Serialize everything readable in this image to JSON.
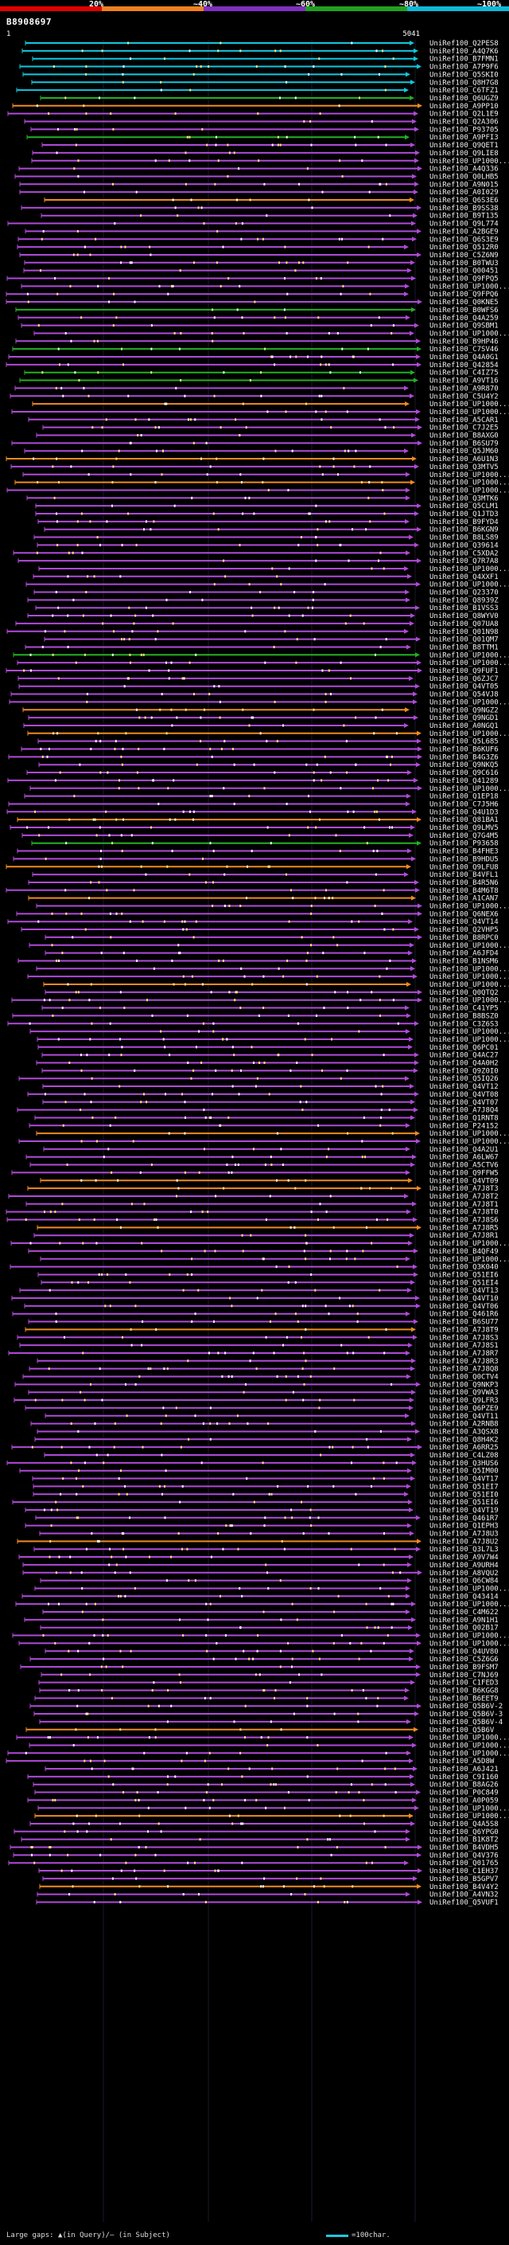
{
  "scale": {
    "ticks": [
      "20%",
      "~40%",
      "~60%",
      "~80%",
      "~100%"
    ],
    "segments": [
      {
        "color": "#e00000"
      },
      {
        "color": "#f08020"
      },
      {
        "color": "#8030c0"
      },
      {
        "color": "#20a020"
      },
      {
        "color": "#10b8d8"
      }
    ]
  },
  "query": {
    "id": "B8908697",
    "start": "1",
    "end": "5041"
  },
  "footer": {
    "legend": "Large gaps: ▲(in Query)/– (in Subject)",
    "length_legend": "=100char."
  },
  "colors": {
    "cyan": "#10c8e0",
    "orange": "#f08a20",
    "green": "#22b022",
    "purple": "#b04ad8",
    "pink": "#f060f0",
    "query": "#ffffff"
  },
  "hits": [
    {
      "label": "UniRef100_Q2PES8",
      "color": "cyan"
    },
    {
      "label": "UniRef100_A4Q7K6",
      "color": "cyan"
    },
    {
      "label": "UniRef100_B7FMN1",
      "color": "cyan"
    },
    {
      "label": "UniRef100_A7P9F6",
      "color": "cyan"
    },
    {
      "label": "UniRef100_Q5SKI0",
      "color": "cyan"
    },
    {
      "label": "UniRef100_Q8H7G8",
      "color": "cyan"
    },
    {
      "label": "UniRef100_C6TFZ1",
      "color": "cyan"
    },
    {
      "label": "UniRef100_Q6UGZ9",
      "color": "green"
    },
    {
      "label": "UniRef100_A9PP10",
      "color": "orange"
    },
    {
      "label": "UniRef100_Q2L1E9",
      "color": "purple"
    },
    {
      "label": "UniRef100_Q2A306",
      "color": "purple"
    },
    {
      "label": "UniRef100_P93705",
      "color": "purple"
    },
    {
      "label": "UniRef100_A9PFI3",
      "color": "green"
    },
    {
      "label": "UniRef100_Q9QET1",
      "color": "purple"
    },
    {
      "label": "UniRef100_Q9LIE8",
      "color": "purple"
    },
    {
      "label": "UniRef100_UP1000...",
      "color": "purple"
    },
    {
      "label": "UniRef100_A4Q336",
      "color": "purple"
    },
    {
      "label": "UniRef100_Q0LHB5",
      "color": "purple"
    },
    {
      "label": "UniRef100_A9N015",
      "color": "purple"
    },
    {
      "label": "UniRef100_A0I029",
      "color": "purple"
    },
    {
      "label": "UniRef100_Q6S3E6",
      "color": "orange"
    },
    {
      "label": "UniRef100_B9SS38",
      "color": "purple"
    },
    {
      "label": "UniRef100_B9T135",
      "color": "purple"
    },
    {
      "label": "UniRef100_Q9L774",
      "color": "purple"
    },
    {
      "label": "UniRef100_A2BGE9",
      "color": "purple"
    },
    {
      "label": "UniRef100_Q6S3E9",
      "color": "purple"
    },
    {
      "label": "UniRef100_Q512R0",
      "color": "purple"
    },
    {
      "label": "UniRef100_C5Z6N9",
      "color": "purple"
    },
    {
      "label": "UniRef100_B0TWU3",
      "color": "purple"
    },
    {
      "label": "UniRef100_Q00451",
      "color": "purple"
    },
    {
      "label": "UniRef100_Q9FPQ5",
      "color": "purple"
    },
    {
      "label": "UniRef100_UP1000...",
      "color": "purple"
    },
    {
      "label": "UniRef100_Q9FPQ6",
      "color": "purple"
    },
    {
      "label": "UniRef100_Q0KNE5",
      "color": "purple"
    },
    {
      "label": "UniRef100_B0WFS6",
      "color": "green"
    },
    {
      "label": "UniRef100_Q4A259",
      "color": "purple"
    },
    {
      "label": "UniRef100_Q9SBM1",
      "color": "purple"
    },
    {
      "label": "UniRef100_UP1000...",
      "color": "purple"
    },
    {
      "label": "UniRef100_B9HP46",
      "color": "purple"
    },
    {
      "label": "UniRef100_C7SV46",
      "color": "green"
    },
    {
      "label": "UniRef100_Q4A0G1",
      "color": "purple"
    },
    {
      "label": "UniRef100_Q42854",
      "color": "purple"
    },
    {
      "label": "UniRef100_C4IZ75",
      "color": "green"
    },
    {
      "label": "UniRef100_A9VT16",
      "color": "green"
    },
    {
      "label": "UniRef100_A9R870",
      "color": "purple"
    },
    {
      "label": "UniRef100_C5U4Y2",
      "color": "purple"
    },
    {
      "label": "UniRef100_UP1000...",
      "color": "orange"
    },
    {
      "label": "UniRef100_UP1000...",
      "color": "purple"
    },
    {
      "label": "UniRef100_A5CAR1",
      "color": "purple"
    },
    {
      "label": "UniRef100_C7J2E5",
      "color": "purple"
    },
    {
      "label": "UniRef100_B8AXG0",
      "color": "purple"
    },
    {
      "label": "UniRef100_B6SU79",
      "color": "purple"
    },
    {
      "label": "UniRef100_Q5JM60",
      "color": "purple"
    },
    {
      "label": "UniRef100_A6U1N3",
      "color": "orange"
    },
    {
      "label": "UniRef100_Q3MTV5",
      "color": "purple"
    },
    {
      "label": "UniRef100_UP1000...",
      "color": "purple"
    },
    {
      "label": "UniRef100_UP1000...",
      "color": "orange"
    },
    {
      "label": "UniRef100_UP1000...",
      "color": "purple"
    },
    {
      "label": "UniRef100_Q3MTK6",
      "color": "purple"
    },
    {
      "label": "UniRef100_Q5CLM1",
      "color": "purple"
    },
    {
      "label": "UniRef100_Q1JTD3",
      "color": "purple"
    },
    {
      "label": "UniRef100_B9FYD4",
      "color": "purple"
    },
    {
      "label": "UniRef100_B6KGN9",
      "color": "purple"
    },
    {
      "label": "UniRef100_B8LS89",
      "color": "purple"
    },
    {
      "label": "UniRef100_Q39614",
      "color": "purple"
    },
    {
      "label": "UniRef100_C5XDA2",
      "color": "purple"
    },
    {
      "label": "UniRef100_Q7R7A8",
      "color": "purple"
    },
    {
      "label": "UniRef100_UP1000...",
      "color": "purple"
    },
    {
      "label": "UniRef100_Q4XXF1",
      "color": "purple"
    },
    {
      "label": "UniRef100_UP1000...",
      "color": "purple"
    },
    {
      "label": "UniRef100_Q23370",
      "color": "purple"
    },
    {
      "label": "UniRef100_Q8939Z",
      "color": "purple"
    },
    {
      "label": "UniRef100_B1VSS3",
      "color": "purple"
    },
    {
      "label": "UniRef100_Q8WYV0",
      "color": "purple"
    },
    {
      "label": "UniRef100_Q07UA8",
      "color": "purple"
    },
    {
      "label": "UniRef100_Q01N98",
      "color": "purple"
    },
    {
      "label": "UniRef100_Q01QM7",
      "color": "purple"
    },
    {
      "label": "UniRef100_B8TTM1",
      "color": "purple"
    },
    {
      "label": "UniRef100_UP1000...",
      "color": "green"
    },
    {
      "label": "UniRef100_UP1000...",
      "color": "purple"
    },
    {
      "label": "UniRef100_Q9FUF1",
      "color": "purple"
    },
    {
      "label": "UniRef100_Q6ZJC7",
      "color": "purple"
    },
    {
      "label": "UniRef100_Q4VT05",
      "color": "purple"
    },
    {
      "label": "UniRef100_Q54VJ8",
      "color": "purple"
    },
    {
      "label": "UniRef100_UP1000...",
      "color": "purple"
    },
    {
      "label": "UniRef100_Q9NGZ2",
      "color": "orange"
    },
    {
      "label": "UniRef100_Q9NGD1",
      "color": "purple"
    },
    {
      "label": "UniRef100_A0NGQ1",
      "color": "purple"
    },
    {
      "label": "UniRef100_UP1000...",
      "color": "orange"
    },
    {
      "label": "UniRef100_Q5L685",
      "color": "purple"
    },
    {
      "label": "UniRef100_B6KUF6",
      "color": "purple"
    },
    {
      "label": "UniRef100_B4G3Z6",
      "color": "purple"
    },
    {
      "label": "UniRef100_Q9NKQ5",
      "color": "purple"
    },
    {
      "label": "UniRef100_Q9C616",
      "color": "purple"
    },
    {
      "label": "UniRef100_Q41289",
      "color": "purple"
    },
    {
      "label": "UniRef100_UP1000...",
      "color": "purple"
    },
    {
      "label": "UniRef100_Q1EP18",
      "color": "purple"
    },
    {
      "label": "UniRef100_C7J5H6",
      "color": "purple"
    },
    {
      "label": "UniRef100_Q4U1D3",
      "color": "purple"
    },
    {
      "label": "UniRef100_Q81BA1",
      "color": "orange"
    },
    {
      "label": "UniRef100_Q9LMV5",
      "color": "purple"
    },
    {
      "label": "UniRef100_Q7G4M5",
      "color": "purple"
    },
    {
      "label": "UniRef100_P93658",
      "color": "green"
    },
    {
      "label": "UniRef100_B4FHE3",
      "color": "purple"
    },
    {
      "label": "UniRef100_B9HDU5",
      "color": "purple"
    },
    {
      "label": "UniRef100_Q9LFU8",
      "color": "orange"
    },
    {
      "label": "UniRef100_B4VFL1",
      "color": "purple"
    },
    {
      "label": "UniRef100_B4R5N6",
      "color": "purple"
    },
    {
      "label": "UniRef100_B4M6T8",
      "color": "purple"
    },
    {
      "label": "UniRef100_A1CAN7",
      "color": "orange"
    },
    {
      "label": "UniRef100_UP1000...",
      "color": "purple"
    },
    {
      "label": "UniRef100_Q6NEX6",
      "color": "purple"
    },
    {
      "label": "UniRef100_Q4VT14",
      "color": "purple"
    },
    {
      "label": "UniRef100_Q2VHP5",
      "color": "purple"
    },
    {
      "label": "UniRef100_B8RPC0",
      "color": "purple"
    },
    {
      "label": "UniRef100_UP1000...",
      "color": "purple"
    },
    {
      "label": "UniRef100_A6JFD4",
      "color": "purple"
    },
    {
      "label": "UniRef100_B1NSM6",
      "color": "purple"
    },
    {
      "label": "UniRef100_UP1000...",
      "color": "purple"
    },
    {
      "label": "UniRef100_UP1000...",
      "color": "purple"
    },
    {
      "label": "UniRef100_UP1000...",
      "color": "orange"
    },
    {
      "label": "UniRef100_Q0QTQ2",
      "color": "purple"
    },
    {
      "label": "UniRef100_UP1000...",
      "color": "purple"
    },
    {
      "label": "UniRef100_C41YP5",
      "color": "purple"
    },
    {
      "label": "UniRef100_B8BSZ0",
      "color": "purple"
    },
    {
      "label": "UniRef100_C3Z6S3",
      "color": "purple"
    },
    {
      "label": "UniRef100_UP1000...",
      "color": "purple"
    },
    {
      "label": "UniRef100_UP1000...",
      "color": "purple"
    },
    {
      "label": "UniRef100_Q6PC01",
      "color": "purple"
    },
    {
      "label": "UniRef100_Q4AC27",
      "color": "purple"
    },
    {
      "label": "UniRef100_Q4A0H2",
      "color": "purple"
    },
    {
      "label": "UniRef100_Q9Z0I0",
      "color": "purple"
    },
    {
      "label": "UniRef100_Q5IQ26",
      "color": "purple"
    },
    {
      "label": "UniRef100_Q4VT12",
      "color": "purple"
    },
    {
      "label": "UniRef100_Q4VT08",
      "color": "purple"
    },
    {
      "label": "UniRef100_Q4VT07",
      "color": "purple"
    },
    {
      "label": "UniRef100_A7J8Q4",
      "color": "purple"
    },
    {
      "label": "UniRef100_Q1RNT8",
      "color": "purple"
    },
    {
      "label": "UniRef100_P24152",
      "color": "purple"
    },
    {
      "label": "UniRef100_UP1000...",
      "color": "orange"
    },
    {
      "label": "UniRef100_UP1000...",
      "color": "purple"
    },
    {
      "label": "UniRef100_Q4A2U1",
      "color": "purple"
    },
    {
      "label": "UniRef100_A6LW67",
      "color": "purple"
    },
    {
      "label": "UniRef100_A5CTV6",
      "color": "purple"
    },
    {
      "label": "UniRef100_Q9FFW5",
      "color": "purple"
    },
    {
      "label": "UniRef100_Q4VT09",
      "color": "orange"
    },
    {
      "label": "UniRef100_A7J8T3",
      "color": "orange"
    },
    {
      "label": "UniRef100_A7J8T2",
      "color": "purple"
    },
    {
      "label": "UniRef100_A7J8T1",
      "color": "purple"
    },
    {
      "label": "UniRef100_A7J8T0",
      "color": "purple"
    },
    {
      "label": "UniRef100_A7J8S6",
      "color": "purple"
    },
    {
      "label": "UniRef100_A7J8R5",
      "color": "orange"
    },
    {
      "label": "UniRef100_A7J8R1",
      "color": "purple"
    },
    {
      "label": "UniRef100_UP1000...",
      "color": "purple"
    },
    {
      "label": "UniRef100_B4QF49",
      "color": "purple"
    },
    {
      "label": "UniRef100_UP1000...",
      "color": "purple"
    },
    {
      "label": "UniRef100_Q3K040",
      "color": "purple"
    },
    {
      "label": "UniRef100_Q51EI6",
      "color": "purple"
    },
    {
      "label": "UniRef100_Q51EI4",
      "color": "purple"
    },
    {
      "label": "UniRef100_Q4VT13",
      "color": "purple"
    },
    {
      "label": "UniRef100_Q4VT10",
      "color": "purple"
    },
    {
      "label": "UniRef100_Q4VT06",
      "color": "purple"
    },
    {
      "label": "UniRef100_Q461R6",
      "color": "purple"
    },
    {
      "label": "UniRef100_B6SU77",
      "color": "purple"
    },
    {
      "label": "UniRef100_A7J8T9",
      "color": "orange"
    },
    {
      "label": "UniRef100_A7J8S3",
      "color": "purple"
    },
    {
      "label": "UniRef100_A7J8S1",
      "color": "purple"
    },
    {
      "label": "UniRef100_A7J8R7",
      "color": "purple"
    },
    {
      "label": "UniRef100_A7J8R3",
      "color": "purple"
    },
    {
      "label": "UniRef100_A7J8Q8",
      "color": "purple"
    },
    {
      "label": "UniRef100_Q0CTV4",
      "color": "purple"
    },
    {
      "label": "UniRef100_Q9NKP3",
      "color": "purple"
    },
    {
      "label": "UniRef100_Q9VWA3",
      "color": "purple"
    },
    {
      "label": "UniRef100_Q9LFR3",
      "color": "purple"
    },
    {
      "label": "UniRef100_Q6PZE9",
      "color": "purple"
    },
    {
      "label": "UniRef100_Q4VT11",
      "color": "purple"
    },
    {
      "label": "UniRef100_A2RNB8",
      "color": "purple"
    },
    {
      "label": "UniRef100_A3QSX8",
      "color": "purple"
    },
    {
      "label": "UniRef100_Q8H4K2",
      "color": "purple"
    },
    {
      "label": "UniRef100_A6RR25",
      "color": "purple"
    },
    {
      "label": "UniRef100_C4LZ08",
      "color": "purple"
    },
    {
      "label": "UniRef100_Q3HUS6",
      "color": "purple"
    },
    {
      "label": "UniRef100_Q5IM00",
      "color": "purple"
    },
    {
      "label": "UniRef100_Q4VT17",
      "color": "purple"
    },
    {
      "label": "UniRef100_Q51EI7",
      "color": "purple"
    },
    {
      "label": "UniRef100_Q51EI0",
      "color": "purple"
    },
    {
      "label": "UniRef100_Q51EI6",
      "color": "purple"
    },
    {
      "label": "UniRef100_Q4VT19",
      "color": "purple"
    },
    {
      "label": "UniRef100_Q461R7",
      "color": "purple"
    },
    {
      "label": "UniRef100_Q1EPH3",
      "color": "purple"
    },
    {
      "label": "UniRef100_A7J8U3",
      "color": "purple"
    },
    {
      "label": "UniRef100_A7J8U2",
      "color": "orange"
    },
    {
      "label": "UniRef100_Q3L7L3",
      "color": "purple"
    },
    {
      "label": "UniRef100_A9V7W4",
      "color": "purple"
    },
    {
      "label": "UniRef100_A9URH4",
      "color": "purple"
    },
    {
      "label": "UniRef100_A8VQU2",
      "color": "purple"
    },
    {
      "label": "UniRef100_Q6CW84",
      "color": "purple"
    },
    {
      "label": "UniRef100_UP1000...",
      "color": "purple"
    },
    {
      "label": "UniRef100_Q43414",
      "color": "purple"
    },
    {
      "label": "UniRef100_UP1000...",
      "color": "purple"
    },
    {
      "label": "UniRef100_C4M622",
      "color": "purple"
    },
    {
      "label": "UniRef100_A9N1H1",
      "color": "purple"
    },
    {
      "label": "UniRef100_Q02B17",
      "color": "purple"
    },
    {
      "label": "UniRef100_UP1000...",
      "color": "purple"
    },
    {
      "label": "UniRef100_UP1000...",
      "color": "purple"
    },
    {
      "label": "UniRef100_Q4UV80",
      "color": "purple"
    },
    {
      "label": "UniRef100_C5Z6G6",
      "color": "purple"
    },
    {
      "label": "UniRef100_B9FSM7",
      "color": "purple"
    },
    {
      "label": "UniRef100_C7NJ69",
      "color": "purple"
    },
    {
      "label": "UniRef100_C1FED3",
      "color": "purple"
    },
    {
      "label": "UniRef100_B6KGG8",
      "color": "purple"
    },
    {
      "label": "UniRef100_B6EET9",
      "color": "purple"
    },
    {
      "label": "UniRef100_Q5B6V-2",
      "color": "purple"
    },
    {
      "label": "UniRef100_Q5B6V-3",
      "color": "purple"
    },
    {
      "label": "UniRef100_Q5B6V-4",
      "color": "purple"
    },
    {
      "label": "UniRef100_Q5B6V",
      "color": "orange"
    },
    {
      "label": "UniRef100_UP1000...",
      "color": "purple"
    },
    {
      "label": "UniRef100_UP1000...",
      "color": "purple"
    },
    {
      "label": "UniRef100_UP1000...",
      "color": "purple"
    },
    {
      "label": "UniRef100_A5D8W",
      "color": "purple"
    },
    {
      "label": "UniRef100_A6J421",
      "color": "purple"
    },
    {
      "label": "UniRef100_C9I160",
      "color": "purple"
    },
    {
      "label": "UniRef100_B8AG26",
      "color": "purple"
    },
    {
      "label": "UniRef100_P0C849",
      "color": "purple"
    },
    {
      "label": "UniRef100_A0P059",
      "color": "purple"
    },
    {
      "label": "UniRef100_UP1000...",
      "color": "purple"
    },
    {
      "label": "UniRef100_UP1000...",
      "color": "orange"
    },
    {
      "label": "UniRef100_Q4A5S8",
      "color": "purple"
    },
    {
      "label": "UniRef100_Q6YPG0",
      "color": "purple"
    },
    {
      "label": "UniRef100_B1K8T2",
      "color": "purple"
    },
    {
      "label": "UniRef100_B4VDH5",
      "color": "purple"
    },
    {
      "label": "UniRef100_Q4V376",
      "color": "purple"
    },
    {
      "label": "UniRef100_Q01765",
      "color": "purple"
    },
    {
      "label": "UniRef100_C1EH37",
      "color": "purple"
    },
    {
      "label": "UniRef100_B5GPV7",
      "color": "purple"
    },
    {
      "label": "UniRef100_B4V4Y2",
      "color": "orange"
    },
    {
      "label": "UniRef100_A4VN32",
      "color": "purple"
    },
    {
      "label": "UniRef100_Q5VUF1",
      "color": "purple"
    }
  ]
}
